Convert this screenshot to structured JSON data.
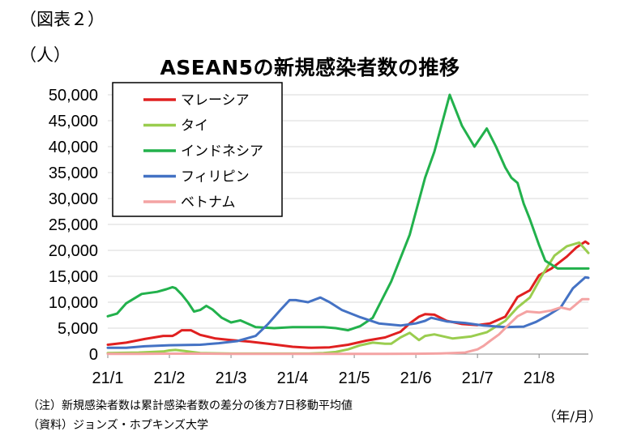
{
  "figure_label": "（図表２）",
  "y_unit_label": "（人）",
  "x_unit_label": "（年/月）",
  "notes": {
    "note": "（注）新規感染者数は累計感染者数の差分の後方7日移動平均値",
    "source": "（資料）ジョンズ・ホプキンズ大学"
  },
  "chart_data": {
    "type": "line",
    "title": "ASEAN5の新規感染者数の推移",
    "ylim": [
      0,
      50000
    ],
    "yticks": [
      "0",
      "5,000",
      "10,000",
      "15,000",
      "20,000",
      "25,000",
      "30,000",
      "35,000",
      "40,000",
      "45,000",
      "50,000"
    ],
    "xlim": [
      0,
      7.8
    ],
    "xticks": [
      "21/1",
      "21/2",
      "21/3",
      "21/4",
      "21/5",
      "21/6",
      "21/7",
      "21/8"
    ],
    "grid": true,
    "legend_position": "top-left",
    "series": [
      {
        "name": "マレーシア",
        "color": "#e02020",
        "x": [
          0,
          0.3,
          0.6,
          0.9,
          1.05,
          1.1,
          1.2,
          1.35,
          1.5,
          1.75,
          2,
          2.3,
          2.6,
          3,
          3.3,
          3.6,
          3.9,
          4.2,
          4.5,
          4.75,
          4.9,
          5.05,
          5.15,
          5.3,
          5.5,
          5.75,
          6.0,
          6.2,
          6.45,
          6.65,
          6.85,
          7.0,
          7.2,
          7.45,
          7.6,
          7.75,
          7.8
        ],
        "y": [
          1800,
          2200,
          2900,
          3500,
          3500,
          3800,
          4600,
          4600,
          3700,
          3000,
          2700,
          2400,
          2000,
          1400,
          1200,
          1300,
          1800,
          2600,
          3200,
          4300,
          5900,
          7200,
          7700,
          7600,
          6400,
          5800,
          5600,
          5900,
          7200,
          11000,
          12300,
          15200,
          16500,
          18800,
          20500,
          21700,
          21300
        ]
      },
      {
        "name": "タイ",
        "color": "#9acd4f",
        "x": [
          0,
          0.5,
          0.9,
          1.0,
          1.1,
          1.25,
          1.5,
          2,
          2.5,
          3,
          3.25,
          3.5,
          3.7,
          3.9,
          4.1,
          4.3,
          4.5,
          4.6,
          4.75,
          4.9,
          5.05,
          5.15,
          5.3,
          5.6,
          5.9,
          6.15,
          6.45,
          6.65,
          6.85,
          7.05,
          7.25,
          7.45,
          7.65,
          7.8
        ],
        "y": [
          200,
          300,
          500,
          700,
          800,
          600,
          200,
          100,
          100,
          100,
          100,
          200,
          400,
          900,
          1700,
          2200,
          2000,
          2000,
          3200,
          4100,
          2700,
          3500,
          3800,
          3000,
          3400,
          4200,
          6400,
          9000,
          10900,
          15200,
          19000,
          20800,
          21500,
          19500
        ]
      },
      {
        "name": "インドネシア",
        "color": "#22b14c",
        "x": [
          0,
          0.15,
          0.3,
          0.55,
          0.8,
          0.95,
          1.05,
          1.1,
          1.2,
          1.3,
          1.4,
          1.5,
          1.6,
          1.7,
          1.85,
          2.0,
          2.15,
          2.4,
          2.7,
          3.0,
          3.3,
          3.5,
          3.7,
          3.9,
          4.1,
          4.3,
          4.6,
          4.9,
          5.15,
          5.3,
          5.55,
          5.75,
          5.95,
          6.15,
          6.3,
          6.45,
          6.55,
          6.65,
          6.75,
          6.85,
          7.0,
          7.1,
          7.3,
          7.45,
          7.6,
          7.8
        ],
        "y": [
          7300,
          7800,
          9800,
          11600,
          12000,
          12500,
          12900,
          12700,
          11500,
          10000,
          8200,
          8500,
          9300,
          8600,
          7000,
          6100,
          6500,
          5200,
          5000,
          5200,
          5200,
          5200,
          5000,
          4600,
          5400,
          7000,
          14000,
          23000,
          34000,
          39000,
          50000,
          44000,
          40000,
          43500,
          40000,
          36000,
          34000,
          33000,
          29000,
          26000,
          21000,
          18000,
          16500,
          16500,
          16500,
          16500
        ]
      },
      {
        "name": "フィリピン",
        "color": "#4472c4",
        "x": [
          0,
          0.3,
          0.6,
          1.0,
          1.5,
          1.8,
          2.1,
          2.4,
          2.6,
          2.8,
          2.95,
          3.05,
          3.25,
          3.45,
          3.6,
          3.8,
          4.1,
          4.4,
          4.75,
          5.0,
          5.15,
          5.25,
          5.5,
          5.8,
          6.1,
          6.45,
          6.75,
          6.95,
          7.15,
          7.35,
          7.55,
          7.75,
          7.8
        ],
        "y": [
          1200,
          1200,
          1500,
          1700,
          1800,
          2100,
          2500,
          3500,
          5800,
          8500,
          10400,
          10400,
          10000,
          10900,
          10000,
          8500,
          7100,
          5900,
          5500,
          5900,
          6400,
          7000,
          6300,
          6000,
          5500,
          5200,
          5300,
          6200,
          7500,
          9000,
          12700,
          14800,
          14700
        ]
      },
      {
        "name": "ベトナム",
        "color": "#f4a3a3",
        "x": [
          0,
          0.5,
          1.0,
          1.5,
          2,
          2.5,
          3,
          3.5,
          4,
          4.5,
          5,
          5.4,
          5.6,
          5.8,
          6.0,
          6.1,
          6.2,
          6.35,
          6.5,
          6.65,
          6.8,
          7.0,
          7.2,
          7.35,
          7.5,
          7.6,
          7.7,
          7.8
        ],
        "y": [
          50,
          50,
          80,
          80,
          50,
          30,
          30,
          30,
          30,
          40,
          60,
          120,
          200,
          300,
          900,
          1600,
          2500,
          3800,
          5600,
          7300,
          8200,
          8000,
          8400,
          9000,
          8600,
          9600,
          10600,
          10600
        ]
      }
    ]
  }
}
